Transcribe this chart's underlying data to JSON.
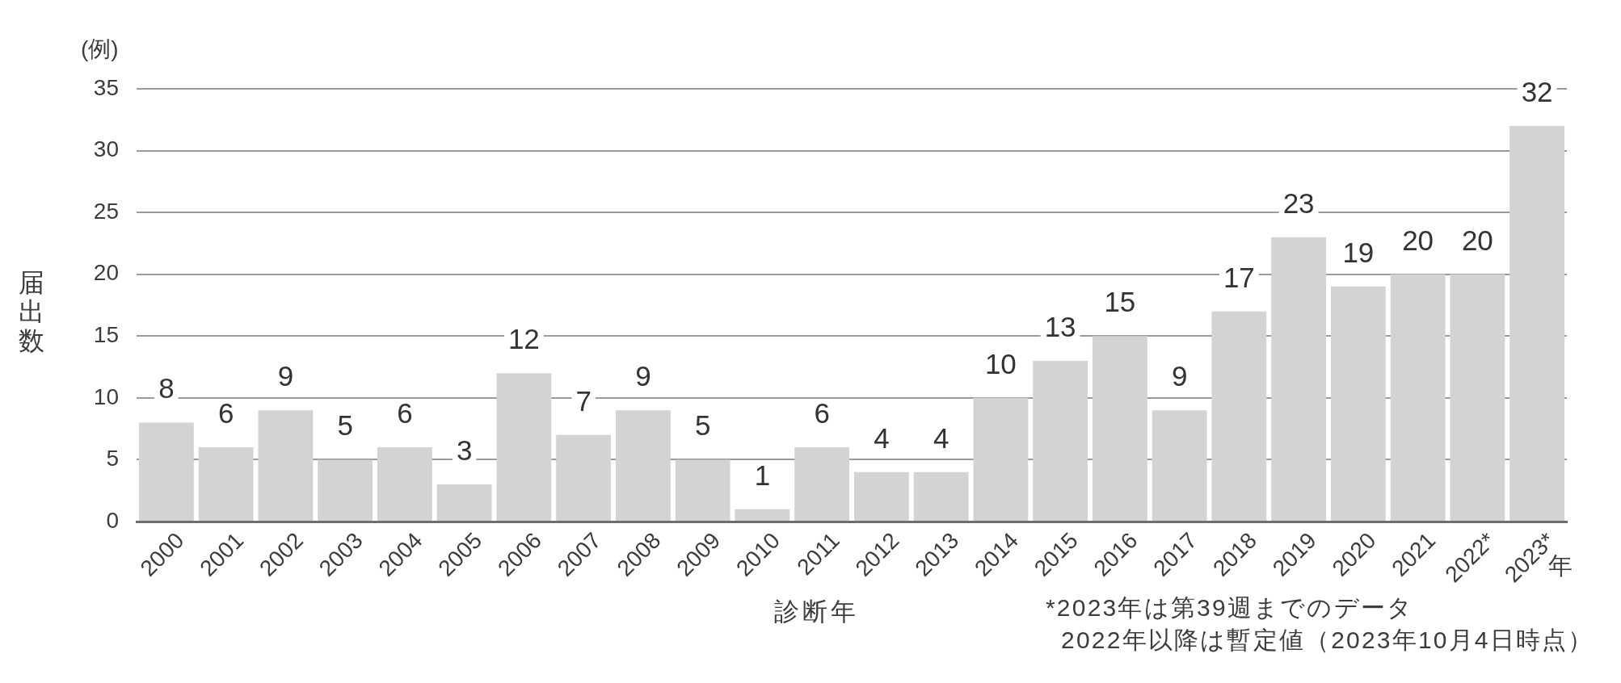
{
  "chart_data": {
    "type": "bar",
    "ylabel": "届出数",
    "xlabel": "診断年",
    "categories": [
      "2000",
      "2001",
      "2002",
      "2003",
      "2004",
      "2005",
      "2006",
      "2007",
      "2008",
      "2009",
      "2010",
      "2011",
      "2012",
      "2013",
      "2014",
      "2015",
      "2016",
      "2017",
      "2018",
      "2019",
      "2020",
      "2021",
      "2022*",
      "2023*"
    ],
    "values": [
      8,
      6,
      9,
      5,
      6,
      3,
      12,
      7,
      9,
      5,
      1,
      6,
      4,
      4,
      10,
      13,
      15,
      9,
      17,
      23,
      19,
      20,
      20,
      32
    ],
    "color": "#d3d3d3",
    "ylim": [
      0,
      35
    ],
    "yticks": [
      0,
      5,
      10,
      15,
      20,
      25,
      30,
      35
    ],
    "grid": "y",
    "data_labels": true,
    "annotations": [
      "(例)",
      "年",
      "*2023年は第39週までのデータ",
      "2022年以降は暫定値（2023年10月4日時点）"
    ]
  }
}
